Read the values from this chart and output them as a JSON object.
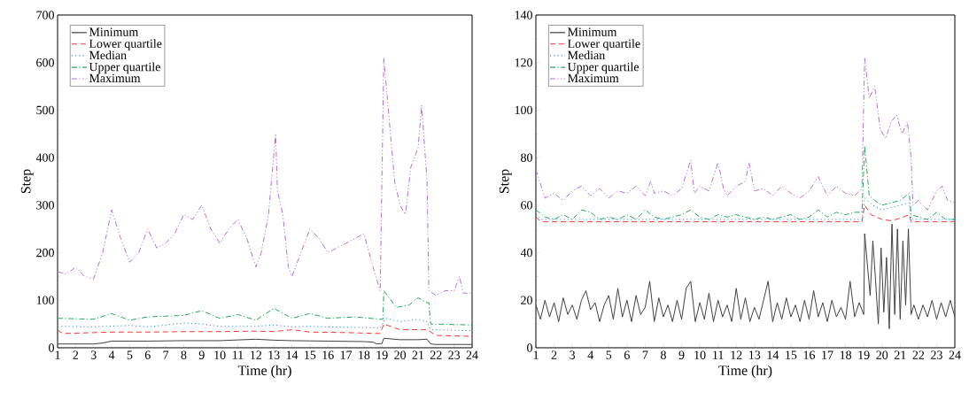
{
  "chart_data": [
    {
      "type": "line",
      "xlabel": "Time (hr)",
      "ylabel": "Step",
      "xlim": [
        1,
        24
      ],
      "ylim": [
        0,
        700
      ],
      "xticks": [
        1,
        2,
        3,
        4,
        5,
        6,
        7,
        8,
        9,
        10,
        11,
        12,
        13,
        14,
        15,
        16,
        17,
        18,
        19,
        20,
        21,
        22,
        23,
        24
      ],
      "yticks": [
        0,
        100,
        200,
        300,
        400,
        500,
        600,
        700
      ],
      "legend": "top left",
      "grid": false,
      "series": [
        {
          "name": "Minimum",
          "color": "#404040",
          "line_style": "solid",
          "x": [
            1,
            3,
            3.5,
            4,
            6,
            8,
            10,
            12,
            13,
            14,
            16,
            18,
            18.5,
            18.7,
            19,
            19.1,
            20,
            21,
            21.5,
            21.7,
            22,
            24
          ],
          "values": [
            8,
            8,
            10,
            14,
            14,
            15,
            15,
            18,
            16,
            15,
            14,
            13,
            12,
            8,
            9,
            20,
            17,
            17,
            18,
            8,
            7,
            7
          ]
        },
        {
          "name": "Lower quartile",
          "color": "#ff3333",
          "line_style": "dashed",
          "x": [
            1,
            1.3,
            4,
            6,
            8,
            10,
            12,
            13,
            14,
            15,
            17,
            18.9,
            19.1,
            20,
            21,
            21.5,
            22,
            24
          ],
          "values": [
            37,
            30,
            33,
            33,
            34,
            34,
            35,
            34,
            38,
            33,
            32,
            30,
            50,
            38,
            38,
            38,
            26,
            24
          ]
        },
        {
          "name": "Median",
          "color": "#3388ff",
          "line_style": "dotted",
          "x": [
            1,
            3,
            5,
            6,
            8,
            9,
            10,
            12,
            13,
            14,
            15,
            17,
            18.9,
            19.2,
            20,
            21,
            21.5,
            21.7,
            24
          ],
          "values": [
            45,
            44,
            47,
            44,
            52,
            50,
            45,
            45,
            48,
            44,
            45,
            43,
            42,
            62,
            55,
            60,
            55,
            38,
            36
          ]
        },
        {
          "name": "Upper quartile",
          "color": "#22aa55",
          "line_style": "dashdot",
          "x": [
            1,
            3,
            4,
            5,
            6,
            8,
            9,
            10,
            11,
            12,
            13,
            14,
            15,
            16,
            17.5,
            18.9,
            19.05,
            19.1,
            19.8,
            20.5,
            21,
            21.5,
            21.6,
            21.7,
            24
          ],
          "values": [
            62,
            60,
            72,
            58,
            65,
            68,
            78,
            62,
            70,
            58,
            83,
            62,
            72,
            62,
            65,
            60,
            60,
            120,
            85,
            90,
            105,
            95,
            95,
            50,
            48
          ]
        },
        {
          "name": "Maximum",
          "color": "#b070e0",
          "line_style": "dashdotdot",
          "x": [
            1,
            1.5,
            2,
            2.5,
            3,
            3.5,
            4,
            4.5,
            5,
            5.5,
            6,
            6.5,
            7,
            7.5,
            8,
            8.5,
            9,
            9.5,
            10,
            10.5,
            11,
            11.5,
            12,
            12.3,
            12.7,
            13.1,
            13.2,
            13.5,
            13.8,
            14,
            14.5,
            15,
            15.5,
            16,
            16.5,
            17,
            17.5,
            18,
            18.5,
            18.9,
            19.1,
            19.4,
            19.7,
            20,
            20.3,
            20.6,
            21,
            21.2,
            21.5,
            21.6,
            22,
            22.5,
            23,
            23.3,
            23.5,
            24
          ],
          "values": [
            160,
            155,
            170,
            150,
            145,
            200,
            290,
            230,
            180,
            200,
            250,
            210,
            220,
            240,
            280,
            270,
            300,
            250,
            220,
            250,
            270,
            230,
            170,
            200,
            280,
            450,
            330,
            280,
            170,
            150,
            200,
            250,
            230,
            200,
            210,
            220,
            230,
            240,
            170,
            120,
            610,
            480,
            350,
            300,
            280,
            380,
            420,
            510,
            350,
            120,
            110,
            120,
            120,
            150,
            115,
            115
          ]
        }
      ]
    },
    {
      "type": "line",
      "xlabel": "Time (hr)",
      "ylabel": "Step",
      "xlim": [
        1,
        24
      ],
      "ylim": [
        0,
        140
      ],
      "xticks": [
        1,
        2,
        3,
        4,
        5,
        6,
        7,
        8,
        9,
        10,
        11,
        12,
        13,
        14,
        15,
        16,
        17,
        18,
        19,
        20,
        21,
        22,
        23,
        24
      ],
      "yticks": [
        0,
        20,
        40,
        60,
        80,
        100,
        120,
        140
      ],
      "legend": "top left",
      "grid": false,
      "series": [
        {
          "name": "Minimum",
          "color": "#404040",
          "line_style": "solid",
          "x": [
            1,
            1.25,
            1.5,
            1.75,
            2,
            2.25,
            2.5,
            2.75,
            3,
            3.25,
            3.5,
            3.75,
            4,
            4.25,
            4.5,
            4.75,
            5,
            5.25,
            5.5,
            5.75,
            6,
            6.25,
            6.5,
            6.75,
            7,
            7.25,
            7.5,
            7.75,
            8,
            8.25,
            8.5,
            8.75,
            9,
            9.25,
            9.5,
            9.75,
            10,
            10.25,
            10.5,
            10.75,
            11,
            11.25,
            11.5,
            11.75,
            12,
            12.25,
            12.5,
            12.75,
            13,
            13.25,
            13.5,
            13.75,
            14,
            14.25,
            14.5,
            14.75,
            15,
            15.25,
            15.5,
            15.75,
            16,
            16.25,
            16.5,
            16.75,
            17,
            17.25,
            17.5,
            17.75,
            18,
            18.25,
            18.5,
            18.75,
            19,
            19.05,
            19.2,
            19.35,
            19.5,
            19.65,
            19.8,
            19.95,
            20.1,
            20.25,
            20.4,
            20.55,
            20.7,
            20.85,
            21,
            21.15,
            21.3,
            21.45,
            21.6,
            21.75,
            22,
            22.25,
            22.5,
            22.75,
            23,
            23.25,
            23.5,
            23.75,
            24
          ],
          "values": [
            18,
            12,
            20,
            13,
            19,
            11,
            21,
            14,
            18,
            12,
            20,
            24,
            16,
            19,
            11,
            18,
            22,
            12,
            25,
            13,
            20,
            11,
            22,
            14,
            17,
            28,
            11,
            21,
            13,
            18,
            11,
            20,
            12,
            25,
            28,
            11,
            19,
            12,
            23,
            11,
            20,
            13,
            18,
            11,
            25,
            12,
            21,
            11,
            17,
            12,
            20,
            28,
            11,
            19,
            12,
            21,
            13,
            18,
            11,
            20,
            12,
            24,
            13,
            19,
            11,
            20,
            13,
            17,
            12,
            28,
            13,
            19,
            14,
            48,
            35,
            22,
            45,
            28,
            10,
            42,
            15,
            38,
            8,
            52,
            14,
            50,
            12,
            45,
            18,
            50,
            14,
            18,
            12,
            18,
            13,
            20,
            12,
            19,
            13,
            20,
            13
          ]
        },
        {
          "name": "Lower quartile",
          "color": "#ff3333",
          "line_style": "dashed",
          "x": [
            1,
            1.3,
            10,
            18.9,
            19.05,
            19.4,
            20,
            20.5,
            21,
            21.5,
            21.6,
            24
          ],
          "values": [
            55,
            53,
            53,
            53,
            60,
            56,
            54,
            53.5,
            54.5,
            56,
            53,
            53
          ]
        },
        {
          "name": "Median",
          "color": "#3388ff",
          "line_style": "dotted",
          "x": [
            1,
            1.3,
            5,
            10,
            15,
            18.9,
            19.05,
            19.5,
            20,
            20.5,
            21,
            21.5,
            21.6,
            24
          ],
          "values": [
            56,
            54,
            54,
            54,
            54,
            54,
            63,
            60,
            58,
            59,
            60,
            61,
            54,
            54
          ]
        },
        {
          "name": "Upper quartile",
          "color": "#22aa55",
          "line_style": "dashdot",
          "x": [
            1,
            1.5,
            2,
            2.5,
            3,
            3.5,
            4,
            4.5,
            5,
            5.5,
            6,
            6.5,
            7,
            7.5,
            8,
            8.5,
            9,
            9.5,
            10,
            10.5,
            11,
            11.5,
            12,
            12.5,
            13,
            13.5,
            14,
            14.5,
            15,
            15.5,
            16,
            16.5,
            17,
            17.5,
            18,
            18.5,
            18.9,
            19.05,
            19.3,
            19.6,
            20,
            20.5,
            21,
            21.5,
            21.6,
            22,
            22.5,
            23,
            23.5,
            24
          ],
          "values": [
            58,
            55,
            54,
            56,
            54,
            58,
            57,
            54,
            55,
            54,
            56,
            54,
            58,
            55,
            54,
            55,
            56,
            58,
            55,
            54,
            56,
            55,
            56,
            55,
            54,
            55,
            54,
            55,
            56,
            54,
            55,
            58,
            55,
            57,
            56,
            57,
            57,
            85,
            64,
            62,
            60,
            61,
            62,
            65,
            56,
            55,
            54,
            57,
            54,
            54
          ]
        },
        {
          "name": "Maximum",
          "color": "#b070e0",
          "line_style": "dashdotdot",
          "x": [
            1,
            1.5,
            2,
            2.5,
            3,
            3.5,
            4,
            4.5,
            5,
            5.5,
            6,
            6.5,
            7,
            7.3,
            7.5,
            8,
            8.5,
            9,
            9.5,
            9.7,
            10,
            10.5,
            11,
            11.3,
            11.5,
            12,
            12.5,
            12.7,
            13,
            13.5,
            14,
            14.5,
            15,
            15.5,
            16,
            16.5,
            17,
            17.5,
            18,
            18.5,
            18.9,
            19.05,
            19.3,
            19.6,
            19.9,
            20.2,
            20.5,
            20.8,
            21.1,
            21.4,
            21.6,
            21.7,
            22,
            22.5,
            23,
            23.3,
            23.6,
            24
          ],
          "values": [
            75,
            63,
            65,
            62,
            66,
            68,
            64,
            67,
            63,
            66,
            65,
            68,
            64,
            70,
            65,
            66,
            64,
            67,
            79,
            65,
            68,
            66,
            78,
            67,
            64,
            68,
            70,
            78,
            66,
            67,
            64,
            68,
            65,
            63,
            66,
            72,
            64,
            68,
            65,
            64,
            67,
            122,
            105,
            110,
            92,
            88,
            95,
            98,
            90,
            95,
            80,
            60,
            62,
            58,
            66,
            68,
            62,
            61
          ]
        }
      ]
    }
  ]
}
